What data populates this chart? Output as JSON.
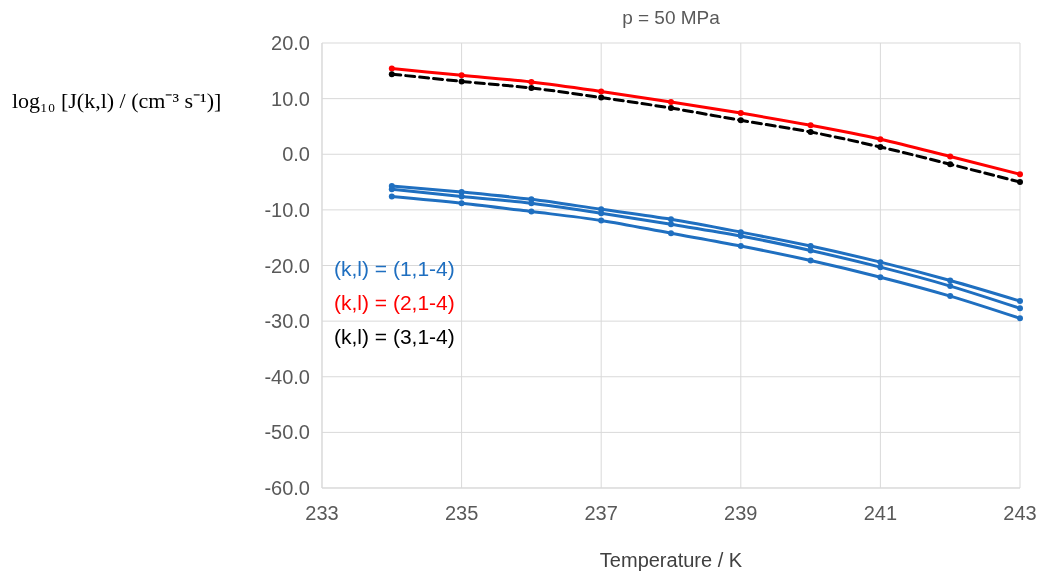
{
  "chart_data": {
    "type": "line",
    "title": "p = 50 MPa",
    "xlabel": "Temperature / K",
    "ylabel": "log₁₀ [J(k,l) / (cm⁻³ s⁻¹)]",
    "x": [
      234,
      235,
      236,
      237,
      238,
      239,
      240,
      241,
      242,
      243
    ],
    "xlim": [
      233,
      243
    ],
    "xticks": [
      233,
      235,
      237,
      239,
      241,
      243
    ],
    "ylim": [
      -60,
      20
    ],
    "yticks": [
      {
        "value": -60,
        "label": "-60.0"
      },
      {
        "value": -50,
        "label": "-50.0"
      },
      {
        "value": -40,
        "label": "-40.0"
      },
      {
        "value": -30,
        "label": "-30.0"
      },
      {
        "value": -20,
        "label": "-20.0"
      },
      {
        "value": -10,
        "label": "-10.0"
      },
      {
        "value": 0,
        "label": "0.0"
      },
      {
        "value": 10,
        "label": "10.0"
      },
      {
        "value": 20,
        "label": "20.0"
      }
    ],
    "grid": true,
    "legend": "left",
    "marker": "circle",
    "series": [
      {
        "name": "(k,l) = (1,1-4)",
        "color": "#1f6fc0",
        "values": [
          -5.7,
          -6.8,
          -8.1,
          -9.9,
          -11.7,
          -14.0,
          -16.5,
          -19.4,
          -22.7,
          -26.4
        ]
      },
      {
        "color": "#1f6fc0",
        "values": [
          -6.3,
          -7.6,
          -8.8,
          -10.6,
          -12.6,
          -14.7,
          -17.3,
          -20.3,
          -23.7,
          -27.7
        ]
      },
      {
        "color": "#1f6fc0",
        "values": [
          -7.6,
          -8.8,
          -10.3,
          -11.9,
          -14.2,
          -16.5,
          -19.1,
          -22.1,
          -25.5,
          -29.5
        ]
      },
      {
        "name": "(k,l) = (2,1-4)",
        "color": "#ff0000",
        "values": [
          15.4,
          14.2,
          13.0,
          11.3,
          9.4,
          7.4,
          5.2,
          2.7,
          -0.4,
          -3.6
        ]
      },
      {
        "name": "(k,l) = (3,1-4)",
        "color": "#000000",
        "line_style": "dashed",
        "values": [
          14.4,
          13.1,
          11.9,
          10.2,
          8.3,
          6.1,
          4.0,
          1.3,
          -1.8,
          -5.0
        ]
      }
    ]
  }
}
